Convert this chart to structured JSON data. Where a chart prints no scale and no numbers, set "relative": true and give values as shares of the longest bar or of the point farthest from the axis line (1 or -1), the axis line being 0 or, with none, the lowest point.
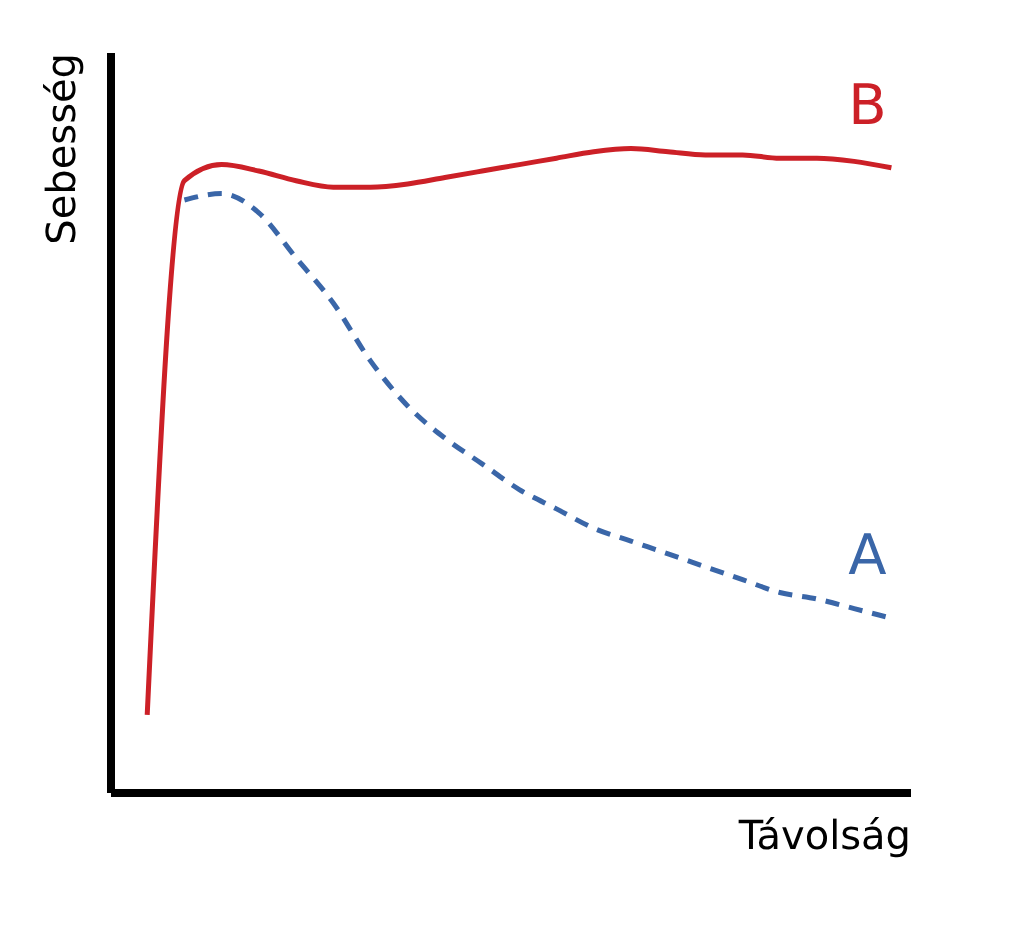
{
  "chart_data": {
    "type": "line",
    "relative": true,
    "xlabel": "Távolság",
    "ylabel": "Sebesség",
    "legend": false,
    "grid": false,
    "marker": "none",
    "categories": [
      null,
      null,
      null,
      null,
      null,
      null,
      null,
      null,
      null,
      null,
      null,
      null,
      null,
      null,
      null,
      null,
      null,
      null,
      null,
      null,
      null
    ],
    "series": [
      {
        "name": "B",
        "color": "#cc2027",
        "line_style": "solid",
        "values": [
          0.12,
          0.95,
          0.975,
          0.965,
          0.95,
          0.94,
          0.94,
          0.945,
          0.955,
          0.965,
          0.975,
          0.985,
          0.995,
          1.0,
          0.995,
          0.99,
          0.99,
          0.985,
          0.985,
          0.98,
          0.97
        ]
      },
      {
        "name": "A",
        "color": "#3a66a8",
        "line_style": "dashed",
        "values": [
          null,
          0.92,
          0.93,
          0.9,
          0.83,
          0.76,
          0.67,
          0.6,
          0.55,
          0.51,
          0.47,
          0.44,
          0.41,
          0.39,
          0.37,
          0.35,
          0.33,
          0.31,
          0.3,
          0.285,
          0.27
        ]
      }
    ]
  }
}
